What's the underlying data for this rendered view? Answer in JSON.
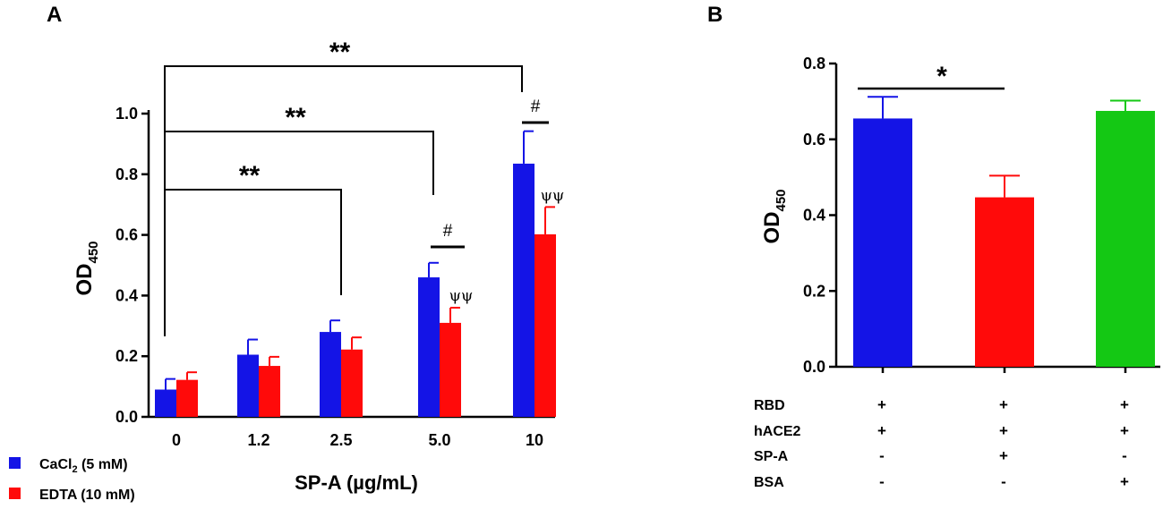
{
  "chart_data": [
    {
      "panel": "A",
      "type": "bar",
      "xlabel": "SP-A (µg/mL)",
      "ylabel": "OD",
      "ylabel_subscript": "450",
      "ylim": [
        0,
        1.0
      ],
      "yticks": [
        "0.0",
        "0.2",
        "0.4",
        "0.6",
        "0.8",
        "1.0"
      ],
      "categories": [
        "0",
        "1.2",
        "2.5",
        "5.0",
        "10"
      ],
      "series": [
        {
          "name": "CaCl",
          "name_sub": "2",
          "name_suffix": " (5 mM)",
          "color": "#1414e6",
          "values": [
            0.09,
            0.205,
            0.28,
            0.46,
            0.835
          ],
          "errors": [
            0.035,
            0.05,
            0.038,
            0.048,
            0.107
          ]
        },
        {
          "name": "EDTA (10 mM)",
          "color": "#ff0a0a",
          "values": [
            0.122,
            0.168,
            0.222,
            0.31,
            0.602
          ],
          "errors": [
            0.025,
            0.03,
            0.04,
            0.05,
            0.09
          ]
        }
      ],
      "annotations": {
        "significance_brackets": [
          {
            "from": "0",
            "to": "2.5",
            "label": "**"
          },
          {
            "from": "0",
            "to": "5.0",
            "label": "**"
          },
          {
            "from": "0",
            "to": "10",
            "label": "**"
          }
        ],
        "hash_marks": [
          {
            "category": "5.0",
            "label": "#"
          },
          {
            "category": "10",
            "label": "#"
          }
        ],
        "psi_marks": [
          {
            "category": "5.0",
            "label": "ψψ"
          },
          {
            "category": "10",
            "label": "ψψ"
          }
        ]
      }
    },
    {
      "panel": "B",
      "type": "bar",
      "ylabel": "OD",
      "ylabel_subscript": "450",
      "ylim": [
        0,
        0.8
      ],
      "yticks": [
        "0.0",
        "0.2",
        "0.4",
        "0.6",
        "0.8"
      ],
      "bars": [
        {
          "value": 0.655,
          "error": 0.057,
          "color": "#1414e6"
        },
        {
          "value": 0.447,
          "error": 0.057,
          "color": "#ff0a0a"
        },
        {
          "value": 0.675,
          "error": 0.027,
          "color": "#14c814"
        }
      ],
      "conditions": [
        {
          "label": "RBD",
          "signs": [
            "+",
            "+",
            "+"
          ]
        },
        {
          "label": "hACE2",
          "signs": [
            "+",
            "+",
            "+"
          ]
        },
        {
          "label": "SP-A",
          "signs": [
            "-",
            "+",
            "-"
          ]
        },
        {
          "label": "BSA",
          "signs": [
            "-",
            "-",
            "+"
          ]
        }
      ],
      "annotations": {
        "significance_brackets": [
          {
            "from_bar": 0,
            "to_bar": 1,
            "label": "*"
          }
        ]
      }
    }
  ]
}
